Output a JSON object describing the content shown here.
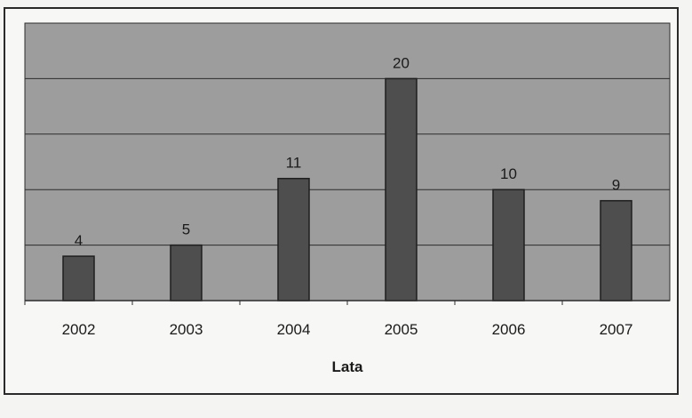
{
  "chart_data": {
    "type": "bar",
    "categories": [
      "2002",
      "2003",
      "2004",
      "2005",
      "2006",
      "2007"
    ],
    "values": [
      4,
      5,
      11,
      20,
      10,
      9
    ],
    "data_labels": [
      "4",
      "5",
      "11",
      "20",
      "10",
      "9"
    ],
    "title": "",
    "xlabel": "Lata",
    "ylabel": "",
    "ylim": [
      0,
      25
    ],
    "grid": true,
    "colors": {
      "plot_background": "#9d9d9d",
      "bar_fill": "#4e4e4e",
      "bar_stroke": "#1e1e1e",
      "gridline": "#2c2c2c"
    }
  }
}
